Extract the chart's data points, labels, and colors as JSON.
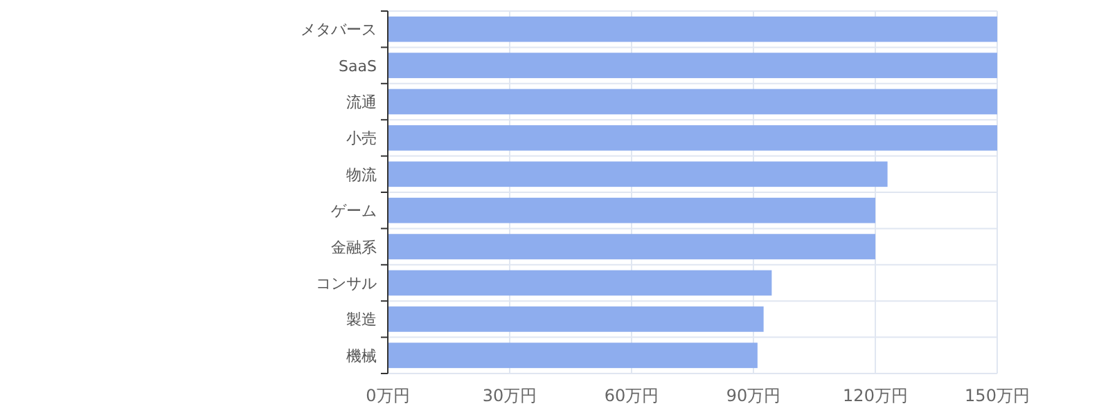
{
  "chart_data": {
    "type": "bar",
    "orientation": "horizontal",
    "categories": [
      "メタバース",
      "SaaS",
      "流通",
      "小売",
      "物流",
      "ゲーム",
      "金融系",
      "コンサル",
      "製造",
      "機械"
    ],
    "values": [
      150,
      150,
      150,
      150,
      123,
      120,
      120,
      94.5,
      92.5,
      91
    ],
    "color": "#8eadee",
    "xlim": [
      0,
      150
    ],
    "xticks": [
      {
        "value": 0,
        "label": "0万円"
      },
      {
        "value": 30,
        "label": "30万円"
      },
      {
        "value": 60,
        "label": "60万円"
      },
      {
        "value": 90,
        "label": "90万円"
      },
      {
        "value": 120,
        "label": "120万円"
      },
      {
        "value": 150,
        "label": "150万円"
      }
    ],
    "grid": true
  }
}
